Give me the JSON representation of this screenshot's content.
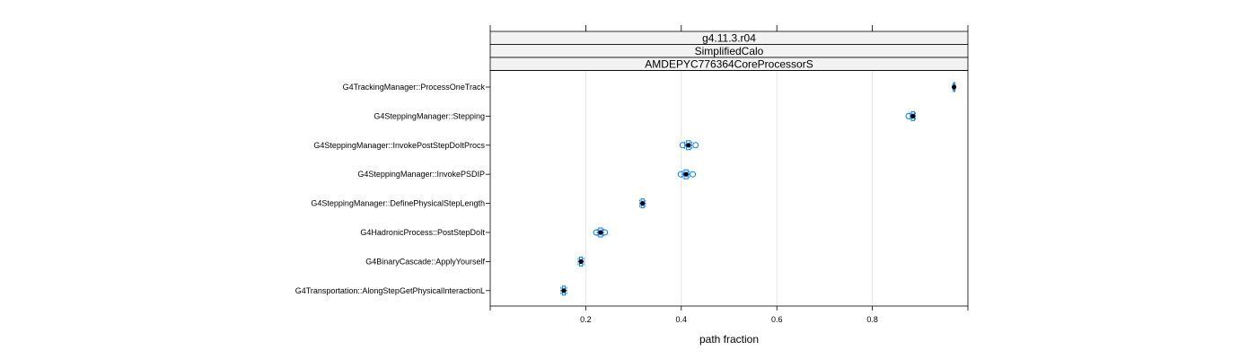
{
  "chart_data": {
    "type": "scatter",
    "strips": [
      "g4.11.3.r04",
      "SimplifiedCalo",
      "AMDEPYC776364CoreProcessorS"
    ],
    "xlabel": "path fraction",
    "xlim": [
      0.0,
      1.0
    ],
    "xticks": [
      0.2,
      0.4,
      0.6,
      0.8
    ],
    "xtick_labels": [
      "0.2",
      "0.4",
      "0.6",
      "0.8"
    ],
    "grid": true,
    "colors": {
      "point": "#0080ff",
      "median": "#000000",
      "strip_bg": "#f2f2f2",
      "grid": "#e6e6e6"
    },
    "categories": [
      "G4TrackingManager::ProcessOneTrack",
      "G4SteppingManager::Stepping",
      "G4SteppingManager::InvokePostStepDoItProcs",
      "G4SteppingManager::InvokePSDIP",
      "G4SteppingManager::DefinePhysicalStepLength",
      "G4HadronicProcess::PostStepDoIt",
      "G4BinaryCascade::ApplyYourself",
      "G4Transportation::AlongStepGetPhysicalInteractionL"
    ],
    "series": [
      {
        "category": "G4TrackingManager::ProcessOneTrack",
        "median": 0.971,
        "box": [
          0.97,
          0.972
        ],
        "whisker": [
          0.969,
          0.973
        ],
        "outliers": []
      },
      {
        "category": "G4SteppingManager::Stepping",
        "median": 0.885,
        "box": [
          0.882,
          0.888
        ],
        "whisker": [
          0.879,
          0.89
        ],
        "outliers": [
          0.876
        ]
      },
      {
        "category": "G4SteppingManager::InvokePostStepDoItProcs",
        "median": 0.415,
        "box": [
          0.411,
          0.419
        ],
        "whisker": [
          0.407,
          0.422
        ],
        "outliers": [
          0.403,
          0.43
        ]
      },
      {
        "category": "G4SteppingManager::InvokePSDIP",
        "median": 0.41,
        "box": [
          0.406,
          0.414
        ],
        "whisker": [
          0.402,
          0.417
        ],
        "outliers": [
          0.399,
          0.424
        ]
      },
      {
        "category": "G4SteppingManager::DefinePhysicalStepLength",
        "median": 0.319,
        "box": [
          0.316,
          0.322
        ],
        "whisker": [
          0.313,
          0.325
        ],
        "outliers": []
      },
      {
        "category": "G4HadronicProcess::PostStepDoIt",
        "median": 0.231,
        "box": [
          0.227,
          0.235
        ],
        "whisker": [
          0.224,
          0.237
        ],
        "outliers": [
          0.222,
          0.24
        ]
      },
      {
        "category": "G4BinaryCascade::ApplyYourself",
        "median": 0.19,
        "box": [
          0.187,
          0.193
        ],
        "whisker": [
          0.184,
          0.196
        ],
        "outliers": []
      },
      {
        "category": "G4Transportation::AlongStepGetPhysicalInteractionL",
        "median": 0.154,
        "box": [
          0.151,
          0.157
        ],
        "whisker": [
          0.148,
          0.16
        ],
        "outliers": []
      }
    ]
  }
}
